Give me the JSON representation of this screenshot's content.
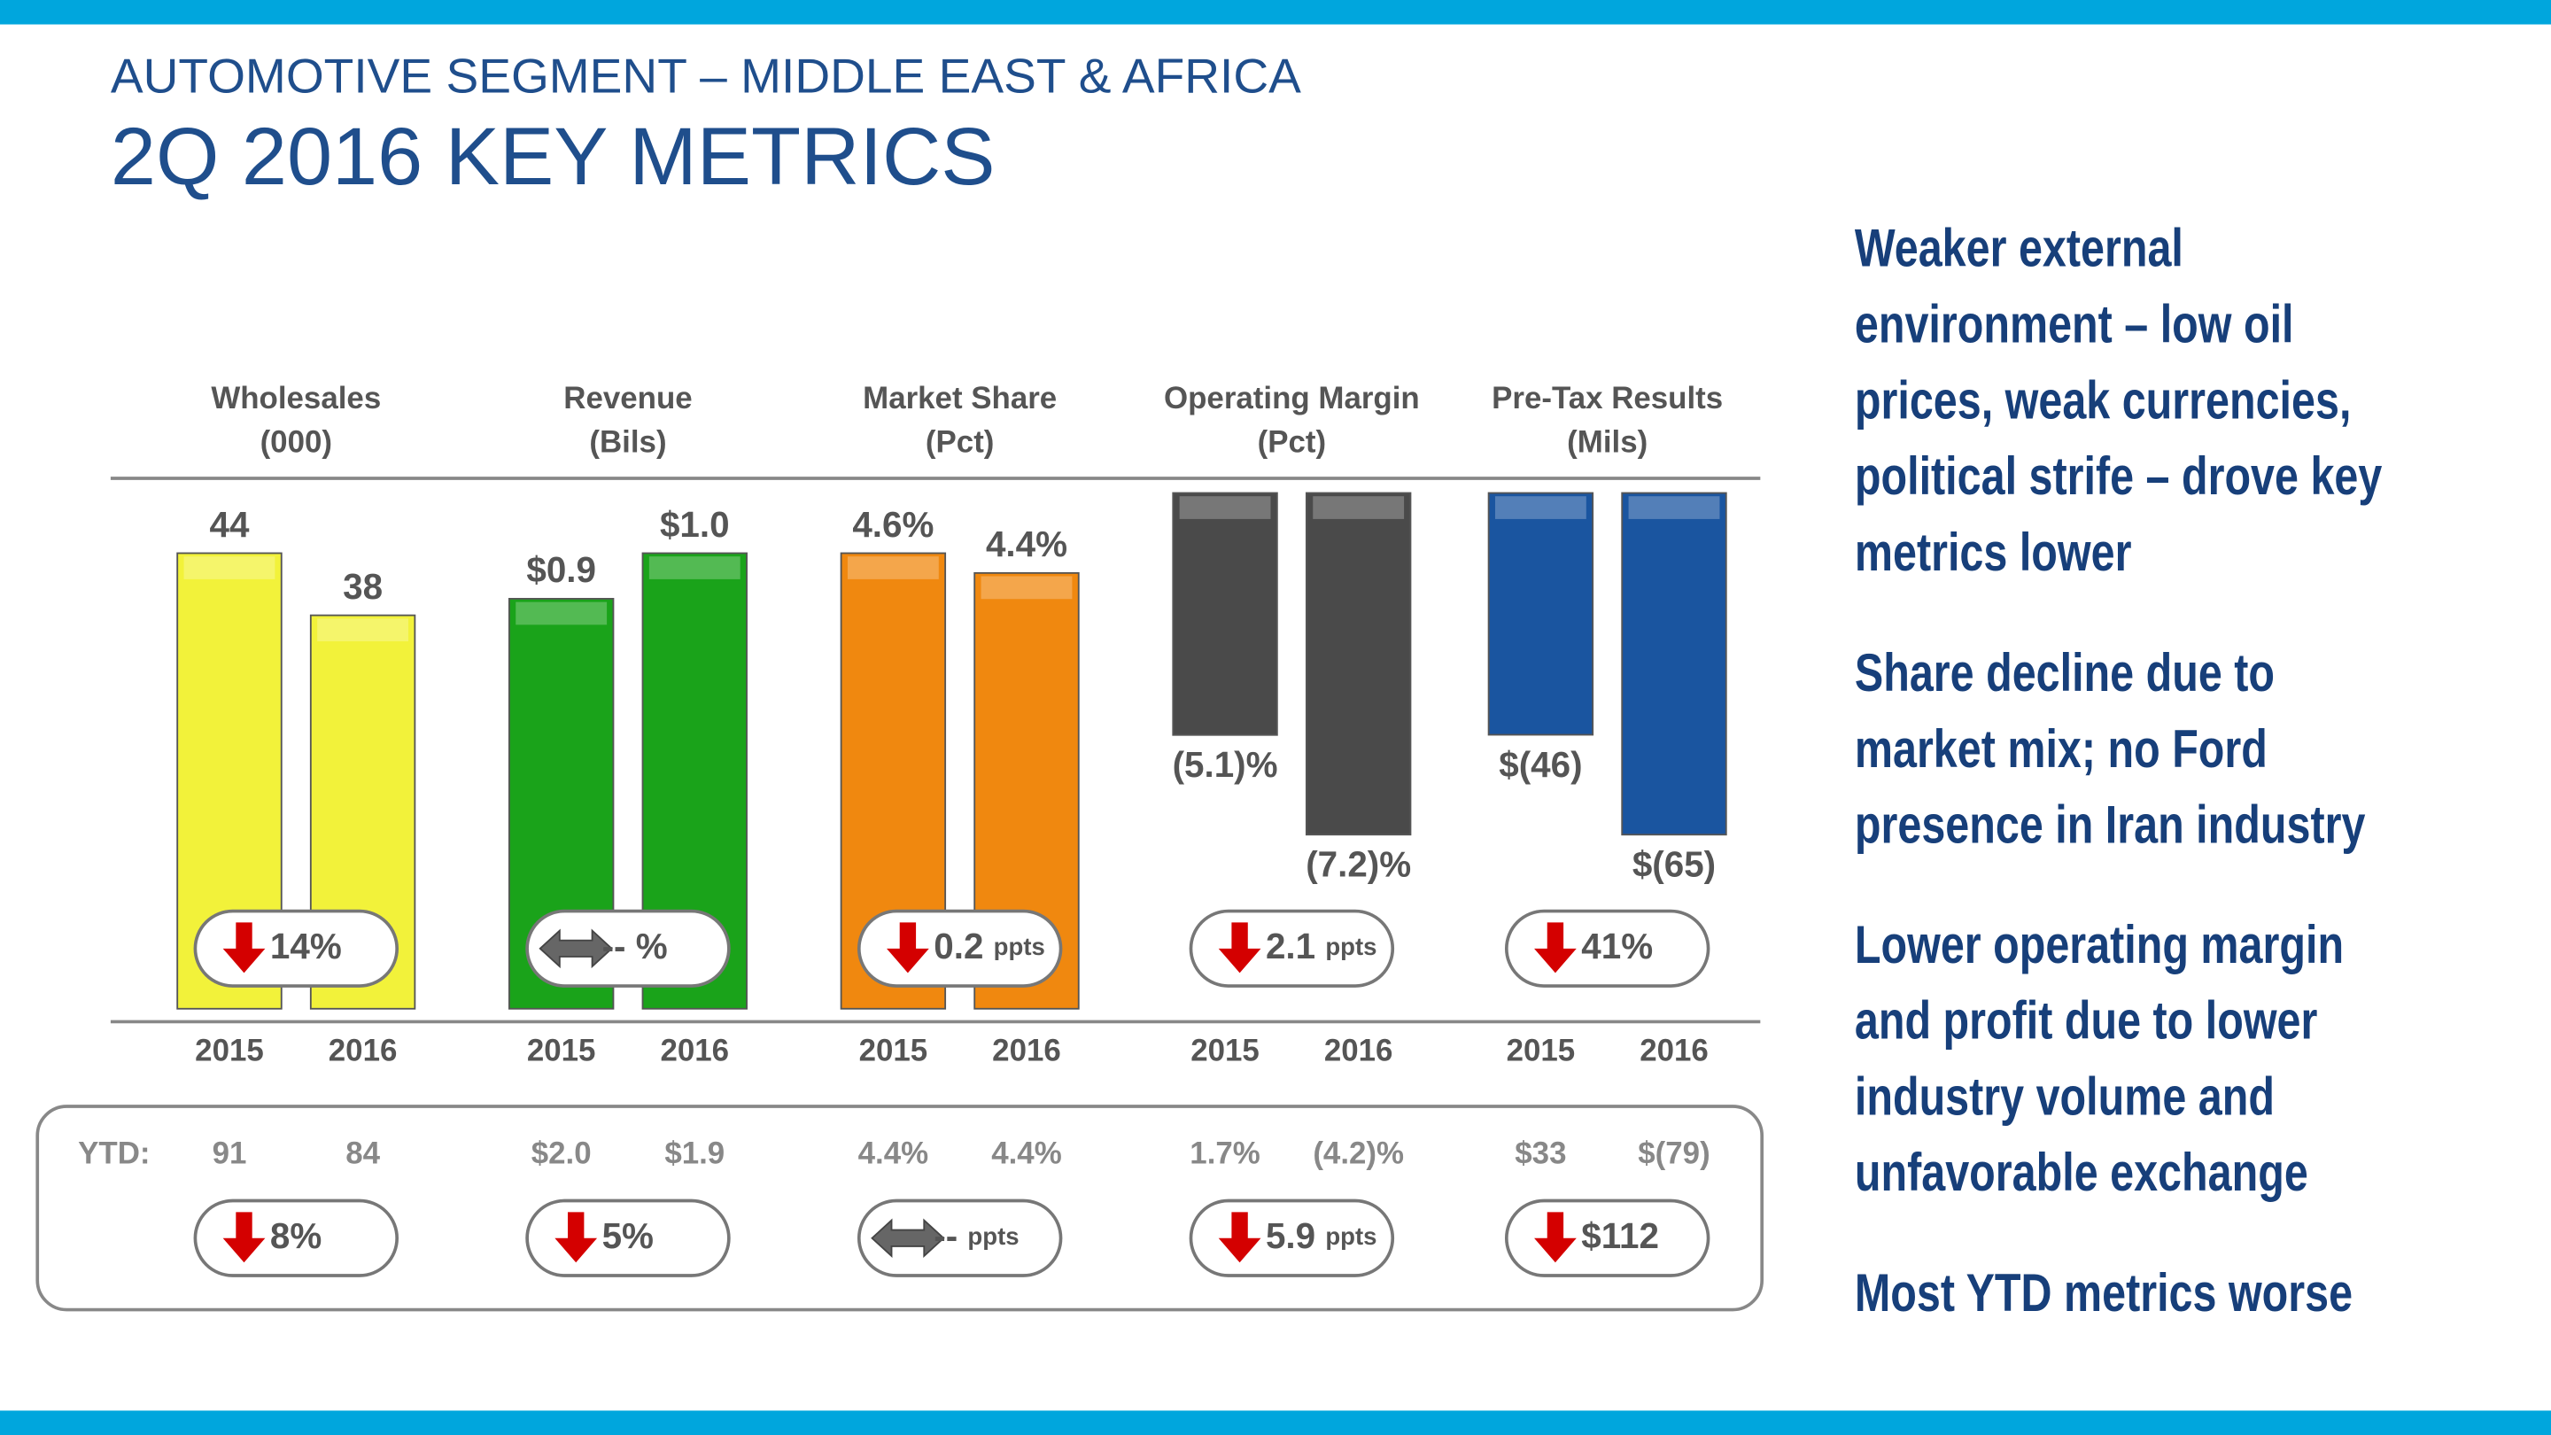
{
  "header": {
    "title": "AUTOMOTIVE SEGMENT – MIDDLE EAST & AFRICA",
    "subtitle": "2Q 2016 KEY METRICS"
  },
  "ytd_label": "YTD:",
  "chart_data": [
    {
      "type": "bar",
      "title": "Wholesales",
      "subtitle": "(000)",
      "categories": [
        "2015",
        "2016"
      ],
      "values": [
        44,
        38
      ],
      "color": "#f2f23a",
      "change": "14%",
      "change_direction": "down",
      "ytd": [
        "91",
        "84"
      ],
      "ytd_change": "8%",
      "ytd_direction": "down"
    },
    {
      "type": "bar",
      "title": "Revenue",
      "subtitle": "(Bils)",
      "categories": [
        "2015",
        "2016"
      ],
      "values": [
        0.9,
        1.0
      ],
      "value_labels": [
        "$0.9",
        "$1.0"
      ],
      "color": "#1aa31a",
      "change": "-- %",
      "change_direction": "flat",
      "ytd": [
        "$2.0",
        "$1.9"
      ],
      "ytd_change": "5%",
      "ytd_direction": "down"
    },
    {
      "type": "bar",
      "title": "Market Share",
      "subtitle": "(Pct)",
      "categories": [
        "2015",
        "2016"
      ],
      "values": [
        4.6,
        4.4
      ],
      "value_labels": [
        "4.6%",
        "4.4%"
      ],
      "color": "#f0880f",
      "change": "0.2",
      "change_unit": "ppts",
      "change_direction": "down",
      "ytd": [
        "4.4%",
        "4.4%"
      ],
      "ytd_change": "--",
      "ytd_change_unit": "ppts",
      "ytd_direction": "flat"
    },
    {
      "type": "bar",
      "title": "Operating Margin",
      "subtitle": "(Pct)",
      "categories": [
        "2015",
        "2016"
      ],
      "values": [
        -5.1,
        -7.2
      ],
      "value_labels": [
        "(5.1)%",
        "(7.2)%"
      ],
      "color": "#4a4a4a",
      "change": "2.1",
      "change_unit": "ppts",
      "change_direction": "down",
      "ytd": [
        "1.7%",
        "(4.2)%"
      ],
      "ytd_change": "5.9",
      "ytd_change_unit": "ppts",
      "ytd_direction": "down"
    },
    {
      "type": "bar",
      "title": "Pre-Tax Results",
      "subtitle": "(Mils)",
      "categories": [
        "2015",
        "2016"
      ],
      "values": [
        -46,
        -65
      ],
      "value_labels": [
        "$(46)",
        "$(65)"
      ],
      "color": "#1a55a0",
      "change": "41%",
      "change_direction": "down",
      "ytd": [
        "$33",
        "$(79)"
      ],
      "ytd_change": "$112",
      "ytd_direction": "down"
    }
  ],
  "bullets": [
    [
      "Weaker external",
      "environment – low oil",
      "prices, weak currencies,",
      "political strife – drove key",
      "metrics lower"
    ],
    [
      "Share decline due to",
      "market mix; no Ford",
      "presence in Iran industry"
    ],
    [
      "Lower operating margin",
      "and profit due to lower",
      "industry volume and",
      "unfavorable exchange"
    ],
    [
      "Most YTD metrics worse"
    ]
  ]
}
